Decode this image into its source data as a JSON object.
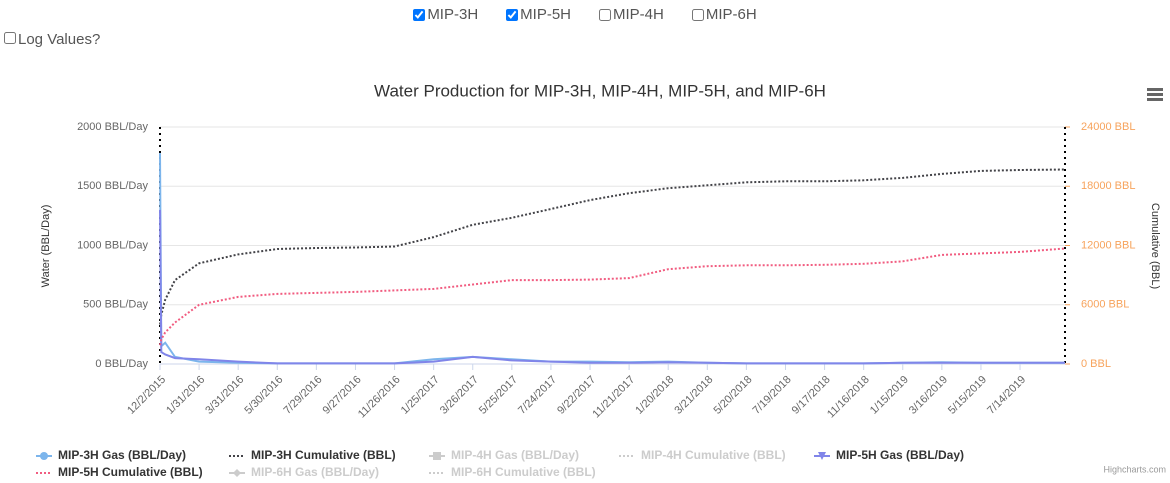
{
  "controls": {
    "wells": [
      {
        "label": "MIP-3H",
        "checked": true
      },
      {
        "label": "MIP-5H",
        "checked": true
      },
      {
        "label": "MIP-4H",
        "checked": false
      },
      {
        "label": "MIP-6H",
        "checked": false
      }
    ],
    "log_values": {
      "label": "Log Values?",
      "checked": false
    }
  },
  "chart_data": {
    "type": "line",
    "title": "Water Production for MIP-3H, MIP-4H, MIP-5H, and MIP-6H",
    "y_label": "Water (BBL/Day)",
    "y2_label": "Cumulative (BBL)",
    "credits": "Highcharts.com",
    "x": [
      "2015-12-02",
      "2015-12-04",
      "2015-12-10",
      "2015-12-25",
      "2016-01-31",
      "2016-03-31",
      "2016-05-30",
      "2016-07-29",
      "2016-09-27",
      "2016-11-26",
      "2017-01-25",
      "2017-03-26",
      "2017-05-25",
      "2017-07-24",
      "2017-09-22",
      "2017-11-21",
      "2018-01-20",
      "2018-03-21",
      "2018-05-20",
      "2018-07-19",
      "2018-09-17",
      "2018-11-16",
      "2019-01-15",
      "2019-03-16",
      "2019-05-15",
      "2019-07-14",
      "2019-09-21"
    ],
    "xlim": [
      "2015-12-02",
      "2019-09-21"
    ],
    "xticks": [
      {
        "value": "2015-12-02",
        "label": "12/2/2015"
      },
      {
        "value": "2016-01-31",
        "label": "1/31/2016"
      },
      {
        "value": "2016-03-31",
        "label": "3/31/2016"
      },
      {
        "value": "2016-05-30",
        "label": "5/30/2016"
      },
      {
        "value": "2016-07-29",
        "label": "7/29/2016"
      },
      {
        "value": "2016-09-27",
        "label": "9/27/2016"
      },
      {
        "value": "2016-11-26",
        "label": "11/26/2016"
      },
      {
        "value": "2017-01-25",
        "label": "1/25/2017"
      },
      {
        "value": "2017-03-26",
        "label": "3/26/2017"
      },
      {
        "value": "2017-05-25",
        "label": "5/25/2017"
      },
      {
        "value": "2017-07-24",
        "label": "7/24/2017"
      },
      {
        "value": "2017-09-22",
        "label": "9/22/2017"
      },
      {
        "value": "2017-11-21",
        "label": "11/21/2017"
      },
      {
        "value": "2018-01-20",
        "label": "1/20/2018"
      },
      {
        "value": "2018-03-21",
        "label": "3/21/2018"
      },
      {
        "value": "2018-05-20",
        "label": "5/20/2018"
      },
      {
        "value": "2018-07-19",
        "label": "7/19/2018"
      },
      {
        "value": "2018-09-17",
        "label": "9/17/2018"
      },
      {
        "value": "2018-11-16",
        "label": "11/16/2018"
      },
      {
        "value": "2019-01-15",
        "label": "1/15/2019"
      },
      {
        "value": "2019-03-16",
        "label": "3/16/2019"
      },
      {
        "value": "2019-05-15",
        "label": "5/15/2019"
      },
      {
        "value": "2019-07-14",
        "label": "7/14/2019"
      }
    ],
    "ylim": [
      0,
      2000
    ],
    "yticks": [
      {
        "value": 0,
        "label": "0 BBL/Day"
      },
      {
        "value": 500,
        "label": "500 BBL/Day"
      },
      {
        "value": 1000,
        "label": "1000 BBL/Day"
      },
      {
        "value": 1500,
        "label": "1500 BBL/Day"
      },
      {
        "value": 2000,
        "label": "2000 BBL/Day"
      }
    ],
    "y2lim": [
      0,
      24000
    ],
    "y2ticks": [
      {
        "value": 0,
        "label": "0 BBL"
      },
      {
        "value": 6000,
        "label": "6000 BBL"
      },
      {
        "value": 12000,
        "label": "12000 BBL"
      },
      {
        "value": 18000,
        "label": "18000 BBL"
      },
      {
        "value": 24000,
        "label": "24000 BBL"
      }
    ],
    "y2color": "#f7a35c",
    "grid": true,
    "legend": "bottom",
    "series": [
      {
        "name": "MIP-3H Gas (BBL/Day)",
        "color": "#7cb5ec",
        "marker": "circle",
        "visible": true,
        "values": [
          1780,
          150,
          180,
          60,
          20,
          10,
          5,
          5,
          5,
          5,
          40,
          60,
          40,
          20,
          20,
          15,
          20,
          10,
          5,
          5,
          5,
          5,
          10,
          15,
          10,
          10,
          10
        ]
      },
      {
        "name": "MIP-3H Cumulative (BBL)",
        "color": "#434348",
        "dash": "dot",
        "axis": "y2",
        "visible": true,
        "values": [
          4000,
          5000,
          6500,
          8500,
          10200,
          11100,
          11650,
          11750,
          11800,
          11900,
          12850,
          14100,
          14800,
          15700,
          16600,
          17300,
          17800,
          18100,
          18400,
          18500,
          18500,
          18600,
          18850,
          19250,
          19550,
          19650,
          19700
        ]
      },
      {
        "name": "MIP-4H Gas (BBL/Day)",
        "marker": "square",
        "visible": false
      },
      {
        "name": "MIP-4H Cumulative (BBL)",
        "dash": "dot",
        "axis": "y2",
        "visible": false
      },
      {
        "name": "MIP-5H Gas (BBL/Day)",
        "color": "#8085e9",
        "marker": "triangle-down",
        "visible": true,
        "values": [
          1300,
          100,
          80,
          50,
          40,
          20,
          5,
          5,
          5,
          5,
          20,
          60,
          30,
          20,
          10,
          10,
          15,
          10,
          5,
          5,
          5,
          5,
          10,
          10,
          10,
          10,
          10
        ]
      },
      {
        "name": "MIP-5H Cumulative (BBL)",
        "color": "#f15c80",
        "dash": "dot",
        "axis": "y2",
        "visible": true,
        "values": [
          1900,
          2500,
          3200,
          4200,
          6000,
          6800,
          7100,
          7200,
          7300,
          7450,
          7600,
          8050,
          8500,
          8500,
          8550,
          8700,
          9600,
          9900,
          10000,
          10000,
          10050,
          10150,
          10400,
          11050,
          11200,
          11350,
          11700
        ]
      },
      {
        "name": "MIP-6H Gas (BBL/Day)",
        "marker": "diamond",
        "visible": false
      },
      {
        "name": "MIP-6H Cumulative (BBL)",
        "dash": "dot",
        "axis": "y2",
        "visible": false
      }
    ]
  }
}
